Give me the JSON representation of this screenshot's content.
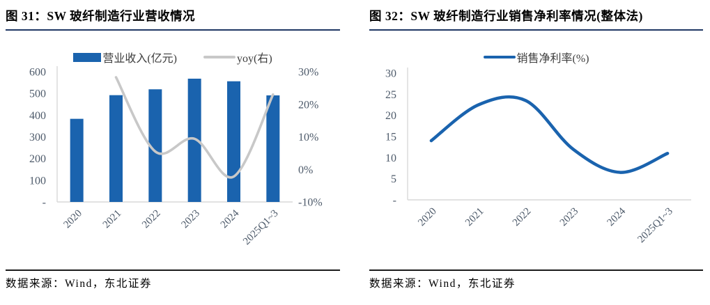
{
  "colors": {
    "background": "#FFFFFF",
    "bar_blue": "#1A63AE",
    "line_blue": "#1A63AE",
    "line_gray": "#C8C8C8",
    "title_rule": "#1F3864",
    "source_rule": "#1A1A1A",
    "axis_label": "#4D5A6A",
    "plot_border": "#D9D9D9"
  },
  "figures": [
    {
      "title": "图 31：SW 玻纤制造行业营收情况",
      "source": "数据来源：Wind，东北证券"
    },
    {
      "title": "图 32：SW 玻纤制造行业销售净利率情况(整体法)",
      "source": "数据来源：Wind，东北证券"
    }
  ],
  "chart_data": [
    {
      "type": "bar",
      "subtype": "combo-bar-line",
      "title": "SW 玻纤制造行业营收情况",
      "categories": [
        "2020",
        "2021",
        "2022",
        "2023",
        "2024",
        "2025Q1~3"
      ],
      "series": [
        {
          "name": "营业收入(亿元)",
          "type": "bar",
          "axis": "left",
          "color": "#1A63AE",
          "values": [
            383,
            492,
            519,
            568,
            556,
            491
          ]
        },
        {
          "name": "yoy(右)",
          "type": "line",
          "axis": "right",
          "color": "#C8C8C8",
          "values": [
            null,
            28.3,
            5.5,
            9.4,
            -2.2,
            23.0
          ]
        }
      ],
      "left_axis": {
        "labels": [
          "600",
          "500",
          "400",
          "300",
          "200",
          "100",
          "-"
        ],
        "values": [
          600,
          500,
          400,
          300,
          200,
          100,
          0
        ],
        "min": 0,
        "max": 600
      },
      "right_axis": {
        "labels": [
          "30%",
          "20%",
          "10%",
          "0%",
          "-10%"
        ],
        "values": [
          30,
          20,
          10,
          0,
          -10
        ],
        "min": -10,
        "max": 30
      },
      "legend_position": "top",
      "grid": false
    },
    {
      "type": "line",
      "title": "SW 玻纤制造行业销售净利率情况(整体法)",
      "categories": [
        "2020",
        "2021",
        "2022",
        "2023",
        "2024",
        "2025Q1~3"
      ],
      "series": [
        {
          "name": "销售净利率(%)",
          "type": "line",
          "axis": "left",
          "color": "#1A63AE",
          "values": [
            14,
            22.5,
            23.5,
            12,
            6.5,
            11
          ]
        }
      ],
      "left_axis": {
        "labels": [
          "30",
          "25",
          "20",
          "15",
          "10",
          "5",
          "-"
        ],
        "values": [
          30,
          25,
          20,
          15,
          10,
          5,
          0
        ],
        "min": 0,
        "max": 30
      },
      "legend_position": "top",
      "grid": false
    }
  ]
}
